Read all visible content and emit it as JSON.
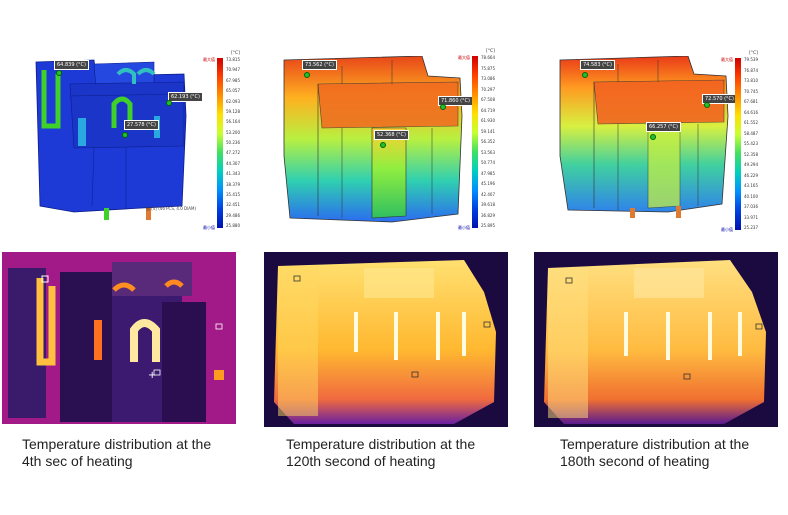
{
  "panels": [
    {
      "caption_line1": "Temperature distribution at the",
      "caption_line2": "4th sec of heating",
      "legend": {
        "unit": "[°C]",
        "max_label": "最大值",
        "min_label": "最小值",
        "ticks": [
          "73.815",
          "70.947",
          "67.985",
          "65.057",
          "62.093",
          "59.128",
          "56.164",
          "53.200",
          "50.236",
          "47.272",
          "44.307",
          "41.343",
          "38.379",
          "35.415",
          "32.451",
          "29.486",
          "25.880"
        ]
      },
      "labels": [
        "64.839 (°C)",
        "62.193 (°C)",
        "27.578 (°C)"
      ],
      "note": "图 [4] (46 PCS, 4.0 DIAM)",
      "colors": {
        "low": "#1d39d6",
        "hot": "#3fd12a"
      }
    },
    {
      "caption_line1": "Temperature distribution at the",
      "caption_line2": "120th second of heating",
      "legend": {
        "unit": "[°C]",
        "max_label": "最大值",
        "min_label": "最小值",
        "ticks": [
          "78.664",
          "75.875",
          "73.086",
          "70.297",
          "67.508",
          "64.719",
          "61.930",
          "59.141",
          "56.352",
          "53.563",
          "50.774",
          "47.985",
          "45.196",
          "42.407",
          "39.618",
          "36.829",
          "25.895"
        ]
      },
      "labels": [
        "73.562 (°C)",
        "71.860 (°C)",
        "52.368 (°C)"
      ],
      "note": "",
      "colors": {
        "low": "#2b6cf0",
        "hot": "#e8461a"
      }
    },
    {
      "caption_line1": "Temperature distribution at the",
      "caption_line2": "180th second of heating",
      "legend": {
        "unit": "[°C]",
        "max_label": "最大值",
        "min_label": "最小值",
        "ticks": [
          "79.539",
          "76.874",
          "73.810",
          "70.745",
          "67.681",
          "64.616",
          "61.552",
          "58.487",
          "55.423",
          "52.358",
          "49.294",
          "46.229",
          "43.165",
          "40.100",
          "37.036",
          "33.971",
          "25.237"
        ]
      },
      "labels": [
        "74.583 (°C)",
        "72.570 (°C)",
        "66.257 (°C)"
      ],
      "note": "",
      "colors": {
        "low": "#2f83ea",
        "hot": "#ea3a18"
      }
    }
  ]
}
